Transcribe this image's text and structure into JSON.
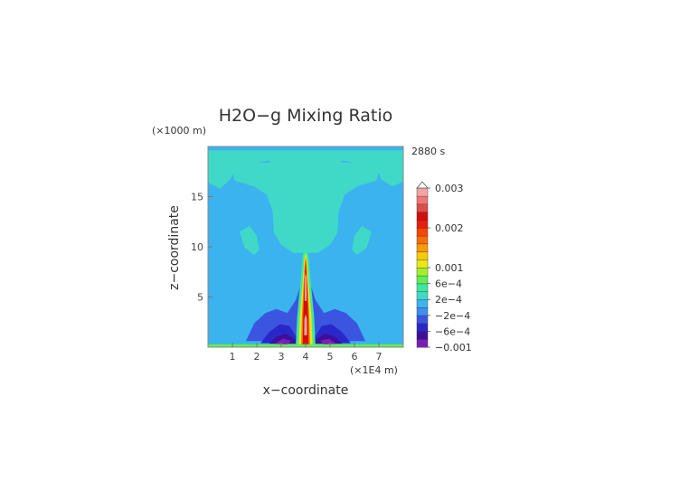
{
  "chart_data": {
    "type": "heatmap",
    "title": "H2O−g Mixing Ratio",
    "time_label": "2880 s",
    "xlabel": "x−coordinate",
    "ylabel": "z−coordinate",
    "x_unit": "(×1E4 m)",
    "y_unit": "(×1000 m)",
    "xlim": [
      0,
      8
    ],
    "ylim": [
      0,
      20
    ],
    "x_ticks": [
      {
        "value": 1,
        "label": "1"
      },
      {
        "value": 2,
        "label": "2"
      },
      {
        "value": 3,
        "label": "3"
      },
      {
        "value": 4,
        "label": "4"
      },
      {
        "value": 5,
        "label": "5"
      },
      {
        "value": 6,
        "label": "6"
      },
      {
        "value": 7,
        "label": "7"
      }
    ],
    "y_ticks": [
      {
        "value": 5,
        "label": "5"
      },
      {
        "value": 10,
        "label": "10"
      },
      {
        "value": 15,
        "label": "15"
      }
    ],
    "colorbar": {
      "colors": [
        "#7a1fb5",
        "#3d0f9a",
        "#2a27c8",
        "#3b55e0",
        "#3f8ef0",
        "#38b6f0",
        "#40d9c8",
        "#3ee8a0",
        "#62ee52",
        "#a6ee2c",
        "#e8e818",
        "#f7c80c",
        "#f99a06",
        "#f86e06",
        "#f64504",
        "#ea1c0e",
        "#d20e0e",
        "#e24a4a",
        "#f07676",
        "#f4a4a4"
      ],
      "labels": [
        {
          "level": 0,
          "text": "−0.001"
        },
        {
          "level": 2,
          "text": "−6e−4"
        },
        {
          "level": 4,
          "text": "−2e−4"
        },
        {
          "level": 6,
          "text": "2e−4"
        },
        {
          "level": 8,
          "text": "6e−4"
        },
        {
          "level": 10,
          "text": "0.001"
        },
        {
          "level": 15,
          "text": "0.002"
        },
        {
          "level": 20,
          "text": "0.003"
        }
      ]
    },
    "regions": [
      {
        "name": "upper-plume",
        "level": 6,
        "polygon": [
          [
            0,
            19.6
          ],
          [
            8,
            19.6
          ],
          [
            8,
            16.5
          ],
          [
            7.55,
            16.0
          ],
          [
            7.1,
            16.7
          ],
          [
            6.9,
            18.0
          ],
          [
            6.0,
            18.4
          ],
          [
            5.5,
            18.6
          ],
          [
            5.0,
            17.2
          ],
          [
            4.0,
            16.6
          ],
          [
            3.0,
            17.2
          ],
          [
            2.5,
            18.6
          ],
          [
            2.0,
            18.4
          ],
          [
            1.2,
            18.0
          ],
          [
            0.9,
            16.7
          ],
          [
            0.5,
            15.8
          ],
          [
            0,
            16.4
          ]
        ]
      },
      {
        "name": "central-plume",
        "level": 6,
        "polygon": [
          [
            0.9,
            18.4
          ],
          [
            7.1,
            18.4
          ],
          [
            6.9,
            16.6
          ],
          [
            6.1,
            16.0
          ],
          [
            5.6,
            15.2
          ],
          [
            5.35,
            13.5
          ],
          [
            5.3,
            11.4
          ],
          [
            5.0,
            10.2
          ],
          [
            4.5,
            9.4
          ],
          [
            3.5,
            9.4
          ],
          [
            3.0,
            10.2
          ],
          [
            2.7,
            11.4
          ],
          [
            2.65,
            13.5
          ],
          [
            2.4,
            15.2
          ],
          [
            1.9,
            16.0
          ],
          [
            1.1,
            16.6
          ]
        ]
      },
      {
        "name": "left-lobe",
        "level": 6,
        "polygon": [
          [
            1.3,
            11.5
          ],
          [
            1.7,
            12.1
          ],
          [
            2.0,
            11.1
          ],
          [
            2.1,
            9.7
          ],
          [
            1.9,
            9.2
          ],
          [
            1.5,
            9.9
          ]
        ]
      },
      {
        "name": "right-lobe",
        "level": 6,
        "polygon": [
          [
            6.7,
            11.5
          ],
          [
            6.3,
            12.1
          ],
          [
            6.0,
            11.1
          ],
          [
            5.9,
            9.7
          ],
          [
            6.1,
            9.2
          ],
          [
            6.5,
            9.9
          ]
        ]
      },
      {
        "name": "dry-skirt",
        "level": 3,
        "polygon": [
          [
            1.55,
            0.6
          ],
          [
            1.9,
            2.4
          ],
          [
            2.35,
            3.4
          ],
          [
            2.8,
            3.8
          ],
          [
            3.25,
            3.4
          ],
          [
            3.6,
            4.7
          ],
          [
            3.85,
            6.6
          ],
          [
            4.15,
            6.6
          ],
          [
            4.4,
            4.7
          ],
          [
            4.75,
            3.4
          ],
          [
            5.2,
            3.8
          ],
          [
            5.65,
            3.4
          ],
          [
            6.1,
            2.4
          ],
          [
            6.45,
            0.6
          ]
        ]
      },
      {
        "name": "dry-core",
        "level": 2,
        "polygon": [
          [
            2.15,
            0.4
          ],
          [
            2.5,
            1.5
          ],
          [
            2.95,
            2.3
          ],
          [
            3.35,
            2.1
          ],
          [
            3.65,
            0.9
          ],
          [
            4.35,
            0.9
          ],
          [
            4.65,
            2.1
          ],
          [
            5.05,
            2.3
          ],
          [
            5.5,
            1.5
          ],
          [
            5.85,
            0.4
          ]
        ]
      },
      {
        "name": "dry-core-inner",
        "level": 1,
        "polygon": [
          [
            2.5,
            0.35
          ],
          [
            2.8,
            1.05
          ],
          [
            3.2,
            1.35
          ],
          [
            3.55,
            0.8
          ],
          [
            4.45,
            0.8
          ],
          [
            4.8,
            1.35
          ],
          [
            5.2,
            1.05
          ],
          [
            5.5,
            0.35
          ]
        ]
      },
      {
        "name": "driest-left",
        "level": 0,
        "polygon": [
          [
            2.75,
            0.35
          ],
          [
            3.05,
            0.85
          ],
          [
            3.4,
            0.65
          ],
          [
            3.25,
            0.25
          ]
        ]
      },
      {
        "name": "driest-right",
        "level": 0,
        "polygon": [
          [
            5.25,
            0.35
          ],
          [
            4.95,
            0.85
          ],
          [
            4.6,
            0.65
          ],
          [
            4.75,
            0.25
          ]
        ]
      },
      {
        "name": "surface-layer",
        "level": 8,
        "polygon": [
          [
            0,
            0
          ],
          [
            8,
            0
          ],
          [
            8,
            0.3
          ],
          [
            0,
            0.3
          ]
        ]
      },
      {
        "name": "moist-column",
        "level": 7,
        "polygon": [
          [
            3.6,
            0.3
          ],
          [
            4.4,
            0.3
          ],
          [
            4.35,
            3.0
          ],
          [
            4.2,
            6.8
          ],
          [
            4.12,
            9.2
          ],
          [
            4.0,
            9.8
          ],
          [
            3.88,
            9.2
          ],
          [
            3.8,
            6.8
          ],
          [
            3.65,
            3.0
          ]
        ]
      },
      {
        "name": "column-yellow",
        "level": 10,
        "polygon": [
          [
            3.72,
            0.3
          ],
          [
            4.28,
            0.3
          ],
          [
            4.24,
            3.0
          ],
          [
            4.12,
            6.6
          ],
          [
            4.06,
            8.8
          ],
          [
            4.0,
            9.4
          ],
          [
            3.94,
            8.8
          ],
          [
            3.88,
            6.6
          ],
          [
            3.76,
            3.0
          ]
        ]
      },
      {
        "name": "column-orange",
        "level": 13,
        "polygon": [
          [
            3.82,
            0.3
          ],
          [
            4.18,
            0.3
          ],
          [
            4.15,
            3.0
          ],
          [
            4.08,
            6.4
          ],
          [
            4.03,
            8.5
          ],
          [
            4.0,
            9.0
          ],
          [
            3.97,
            8.5
          ],
          [
            3.92,
            6.4
          ],
          [
            3.85,
            3.0
          ]
        ]
      },
      {
        "name": "column-red",
        "level": 16,
        "polygon": [
          [
            3.88,
            0.3
          ],
          [
            4.12,
            0.3
          ],
          [
            4.1,
            3.0
          ],
          [
            4.05,
            6.2
          ],
          [
            4.02,
            8.0
          ],
          [
            4.0,
            8.6
          ],
          [
            3.98,
            8.0
          ],
          [
            3.95,
            6.2
          ],
          [
            3.9,
            3.0
          ]
        ]
      },
      {
        "name": "column-core-low",
        "level": 19,
        "polygon": [
          [
            3.94,
            1.2
          ],
          [
            4.06,
            1.2
          ],
          [
            4.05,
            2.8
          ],
          [
            4.0,
            3.3
          ],
          [
            3.95,
            2.8
          ]
        ]
      },
      {
        "name": "column-core-high",
        "level": 19,
        "polygon": [
          [
            3.96,
            4.6
          ],
          [
            4.04,
            4.6
          ],
          [
            4.03,
            7.0
          ],
          [
            4.0,
            7.4
          ],
          [
            3.97,
            7.0
          ]
        ]
      },
      {
        "name": "column-blob-1",
        "level": 20,
        "polygon": [
          [
            3.985,
            5.4
          ],
          [
            4.015,
            5.4
          ],
          [
            4.015,
            6.6
          ],
          [
            3.985,
            6.6
          ]
        ]
      },
      {
        "name": "column-blob-2",
        "level": 20,
        "polygon": [
          [
            3.985,
            1.7
          ],
          [
            4.015,
            1.7
          ],
          [
            4.015,
            2.4
          ],
          [
            3.985,
            2.4
          ]
        ]
      }
    ]
  }
}
